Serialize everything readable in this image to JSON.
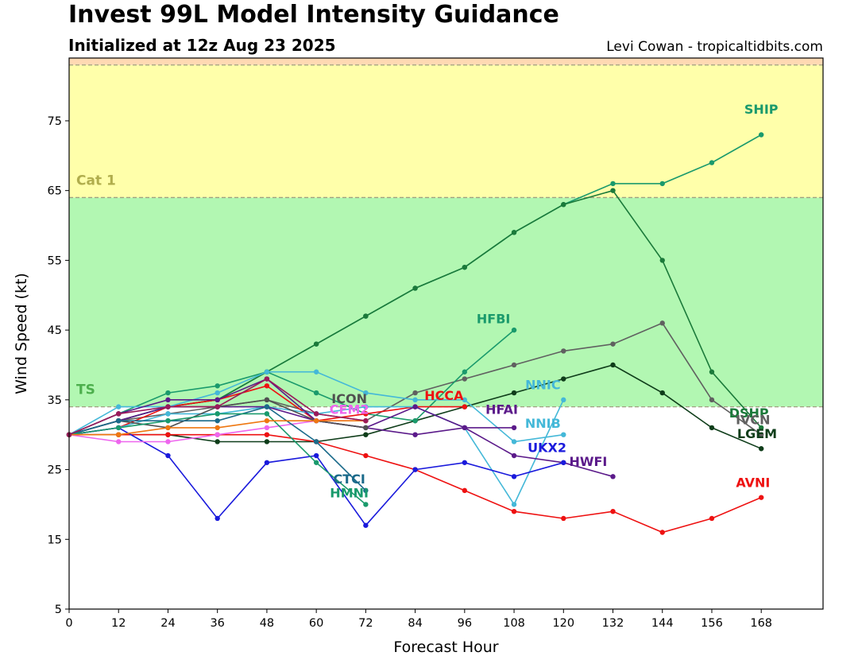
{
  "header": {
    "title": "Invest 99L Model Intensity Guidance",
    "subtitle": "Initialized at 12z Aug 23 2025",
    "credit": "Levi Cowan - tropicaltidbits.com"
  },
  "chart_data": {
    "type": "line",
    "xlabel": "Forecast Hour",
    "ylabel": "Wind Speed (kt)",
    "xlim": [
      0,
      183
    ],
    "ylim": [
      5,
      84
    ],
    "xticks": [
      0,
      12,
      24,
      36,
      48,
      60,
      72,
      84,
      96,
      108,
      120,
      132,
      144,
      156,
      168
    ],
    "yticks": [
      5,
      15,
      25,
      35,
      45,
      55,
      65,
      75
    ],
    "bands": [
      {
        "from": 34,
        "to": 64,
        "color": "#b2f7b2",
        "label": "TS",
        "label_color": "#4caf4c"
      },
      {
        "from": 64,
        "to": 83,
        "color": "#ffffaa",
        "label": "Cat 1",
        "label_color": "#b0ad4c"
      },
      {
        "from": 83,
        "to": 84,
        "color": "#ffd9b3",
        "label": "",
        "label_color": "#000000"
      }
    ],
    "thresholds": [
      34,
      64,
      83
    ],
    "series": [
      {
        "name": "SHIP",
        "color": "#1a9a6c",
        "label_at": [
          168,
          76
        ],
        "x": [
          0,
          12,
          24,
          36,
          48,
          60,
          72,
          84,
          96,
          108,
          120,
          132,
          144,
          156,
          168
        ],
        "y": [
          30,
          32,
          34,
          35,
          39,
          43,
          47,
          51,
          54,
          59,
          63,
          66,
          66,
          69,
          73
        ]
      },
      {
        "name": "DSHP",
        "color": "#1b7a3a",
        "label_at": [
          165,
          32.5
        ],
        "x": [
          0,
          12,
          24,
          36,
          48,
          60,
          72,
          84,
          96,
          108,
          120,
          132,
          144,
          156,
          168
        ],
        "y": [
          30,
          32,
          34,
          35,
          39,
          43,
          47,
          51,
          54,
          59,
          63,
          65,
          55,
          39,
          31
        ]
      },
      {
        "name": "LGEM",
        "color": "#0f3d1a",
        "label_at": [
          167,
          29.5
        ],
        "x": [
          0,
          12,
          24,
          36,
          48,
          60,
          72,
          84,
          96,
          108,
          120,
          132,
          144,
          156,
          168
        ],
        "y": [
          30,
          30,
          30,
          29,
          29,
          29,
          30,
          32,
          34,
          36,
          38,
          40,
          36,
          31,
          28
        ]
      },
      {
        "name": "IVCN",
        "color": "#606060",
        "label_at": [
          166,
          31.5
        ],
        "x": [
          0,
          12,
          24,
          36,
          48,
          60,
          72,
          84,
          96,
          108,
          120,
          132,
          144,
          156,
          168
        ],
        "y": [
          30,
          32,
          33,
          34,
          35,
          33,
          32,
          36,
          38,
          40,
          42,
          43,
          46,
          35,
          30
        ]
      },
      {
        "name": "AVNI",
        "color": "#ee1111",
        "label_at": [
          166,
          22.5
        ],
        "x": [
          0,
          12,
          24,
          36,
          48,
          60,
          72,
          84,
          96,
          108,
          120,
          132,
          144,
          156,
          168
        ],
        "y": [
          30,
          30,
          30,
          30,
          30,
          29,
          27,
          25,
          22,
          19,
          18,
          19,
          16,
          18,
          21
        ]
      },
      {
        "name": "HFBI",
        "color": "#1a9a6c",
        "label_at": [
          103,
          46
        ],
        "x": [
          0,
          12,
          24,
          36,
          48,
          60,
          72,
          84,
          96,
          108
        ],
        "y": [
          30,
          33,
          36,
          37,
          39,
          36,
          33,
          32,
          39,
          45
        ]
      },
      {
        "name": "HCCA",
        "color": "#ee1111",
        "label_at": [
          91,
          35
        ],
        "x": [
          0,
          12,
          24,
          36,
          48,
          60,
          72,
          84,
          96
        ],
        "y": [
          30,
          31,
          34,
          35,
          37,
          32,
          33,
          34,
          34
        ]
      },
      {
        "name": "NNIC",
        "color": "#44b8d8",
        "label_at": [
          115,
          36.5
        ],
        "x": [
          0,
          12,
          24,
          36,
          48,
          60,
          72,
          84,
          96,
          108,
          120
        ],
        "y": [
          30,
          34,
          34,
          36,
          39,
          39,
          36,
          35,
          35,
          29,
          30
        ]
      },
      {
        "name": "NNIB",
        "color": "#44b8d8",
        "label_at": [
          115,
          31
        ],
        "x": [
          0,
          12,
          24,
          36,
          48,
          60,
          72,
          84,
          96,
          108,
          120
        ],
        "y": [
          30,
          31,
          33,
          33,
          34,
          33,
          34,
          34,
          31,
          20,
          35
        ]
      },
      {
        "name": "HFAI",
        "color": "#5b1a8a",
        "label_at": [
          105,
          33
        ],
        "x": [
          0,
          12,
          24,
          36,
          48,
          60,
          72,
          84,
          96,
          108
        ],
        "y": [
          30,
          32,
          34,
          34,
          34,
          32,
          31,
          30,
          31,
          31
        ]
      },
      {
        "name": "HWFI",
        "color": "#5b1a8a",
        "label_at": [
          126,
          25.5
        ],
        "x": [
          0,
          12,
          24,
          36,
          48,
          60,
          72,
          84,
          96,
          108,
          120,
          132
        ],
        "y": [
          30,
          33,
          35,
          35,
          38,
          32,
          31,
          34,
          31,
          27,
          26,
          24
        ]
      },
      {
        "name": "UKX2",
        "color": "#1a1adc",
        "label_at": [
          116,
          27.5
        ],
        "x": [
          0,
          12,
          24,
          36,
          48,
          60,
          72,
          84,
          96,
          108,
          120
        ],
        "y": [
          30,
          31,
          27,
          18,
          26,
          27,
          17,
          25,
          26,
          24,
          26
        ]
      },
      {
        "name": "ICON",
        "color": "#505050",
        "label_at": [
          68,
          34.5
        ],
        "x": [
          0,
          12,
          24,
          36,
          48,
          60,
          72
        ],
        "y": [
          30,
          32,
          31,
          34,
          35,
          32,
          31
        ]
      },
      {
        "name": "CEM2",
        "color": "#ee66ee",
        "label_at": [
          68,
          33
        ],
        "x": [
          0,
          12,
          24,
          36,
          48,
          60,
          72
        ],
        "y": [
          30,
          29,
          29,
          30,
          31,
          32,
          32
        ]
      },
      {
        "name": "CTCI",
        "color": "#1a6a8a",
        "label_at": [
          68,
          23
        ],
        "x": [
          0,
          12,
          24,
          36,
          48,
          60,
          72
        ],
        "y": [
          30,
          32,
          32,
          32,
          34,
          29,
          22
        ]
      },
      {
        "name": "HMNI",
        "color": "#1a9a6c",
        "label_at": [
          68,
          21
        ],
        "x": [
          0,
          12,
          24,
          36,
          48,
          60,
          72
        ],
        "y": [
          30,
          31,
          32,
          33,
          33,
          26,
          20
        ]
      },
      {
        "name": "",
        "color": "#ee7711",
        "label_at": null,
        "x": [
          0,
          12,
          24,
          36,
          48,
          60,
          72
        ],
        "y": [
          30,
          30,
          31,
          31,
          32,
          32,
          32
        ]
      },
      {
        "name": "",
        "color": "#9a1a5a",
        "label_at": null,
        "x": [
          0,
          12,
          24,
          36,
          48,
          60,
          72
        ],
        "y": [
          30,
          33,
          34,
          34,
          38,
          33,
          32
        ]
      }
    ]
  }
}
